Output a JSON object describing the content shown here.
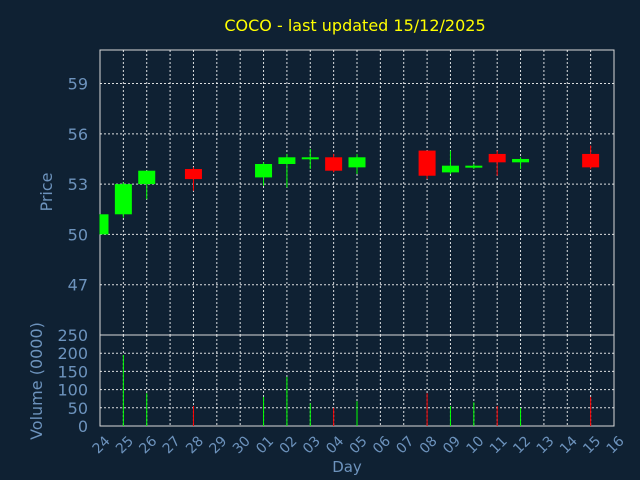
{
  "chart_data": {
    "type": "candlestick",
    "title": "COCO - last updated 15/12/2025",
    "xlabel": "Day",
    "ylabel": "Price",
    "volume_label": "Volume (0000)",
    "x_ticks": [
      "24",
      "25",
      "26",
      "27",
      "28",
      "29",
      "30",
      "01",
      "02",
      "03",
      "04",
      "05",
      "06",
      "07",
      "08",
      "09",
      "10",
      "11",
      "12",
      "13",
      "14",
      "15",
      "16"
    ],
    "price_ticks": [
      47,
      50,
      53,
      56,
      59
    ],
    "price_range": [
      44,
      61
    ],
    "volume_ticks": [
      0,
      50,
      100,
      150,
      200,
      250
    ],
    "volume_range": [
      0,
      250
    ],
    "grid": true,
    "candles": [
      {
        "day": "24",
        "open": 50.0,
        "high": 51.2,
        "low": 50.0,
        "close": 51.2,
        "volume": 0
      },
      {
        "day": "25",
        "open": 51.2,
        "high": 53.1,
        "low": 51.0,
        "close": 53.0,
        "volume": 195
      },
      {
        "day": "26",
        "open": 53.0,
        "high": 53.8,
        "low": 52.1,
        "close": 53.8,
        "volume": 90
      },
      {
        "day": "28",
        "open": 53.9,
        "high": 54.0,
        "low": 52.6,
        "close": 53.3,
        "volume": 55
      },
      {
        "day": "01",
        "open": 53.4,
        "high": 54.3,
        "low": 52.9,
        "close": 54.2,
        "volume": 80
      },
      {
        "day": "02",
        "open": 54.2,
        "high": 54.8,
        "low": 52.8,
        "close": 54.6,
        "volume": 135
      },
      {
        "day": "03",
        "open": 54.6,
        "high": 55.1,
        "low": 53.9,
        "close": 54.6,
        "volume": 62
      },
      {
        "day": "04",
        "open": 54.6,
        "high": 54.8,
        "low": 53.7,
        "close": 53.8,
        "volume": 50
      },
      {
        "day": "05",
        "open": 54.0,
        "high": 54.8,
        "low": 53.6,
        "close": 54.6,
        "volume": 68
      },
      {
        "day": "08",
        "open": 55.0,
        "high": 55.0,
        "low": 53.3,
        "close": 53.5,
        "volume": 90
      },
      {
        "day": "09",
        "open": 53.7,
        "high": 55.0,
        "low": 53.6,
        "close": 54.1,
        "volume": 55
      },
      {
        "day": "10",
        "open": 54.0,
        "high": 54.2,
        "low": 53.9,
        "close": 54.1,
        "volume": 65
      },
      {
        "day": "11",
        "open": 54.8,
        "high": 55.0,
        "low": 53.5,
        "close": 54.3,
        "volume": 55
      },
      {
        "day": "12",
        "open": 54.3,
        "high": 54.6,
        "low": 53.9,
        "close": 54.5,
        "volume": 50
      },
      {
        "day": "15",
        "open": 54.8,
        "high": 55.3,
        "low": 53.9,
        "close": 54.0,
        "volume": 80
      }
    ]
  },
  "colors": {
    "background": "#0f2133",
    "axis_text": "#6d93bd",
    "title": "#ffff00",
    "grid": "#ffffff",
    "up": "#00ff00",
    "down": "#ff0000",
    "frame": "#d9d9d9"
  }
}
